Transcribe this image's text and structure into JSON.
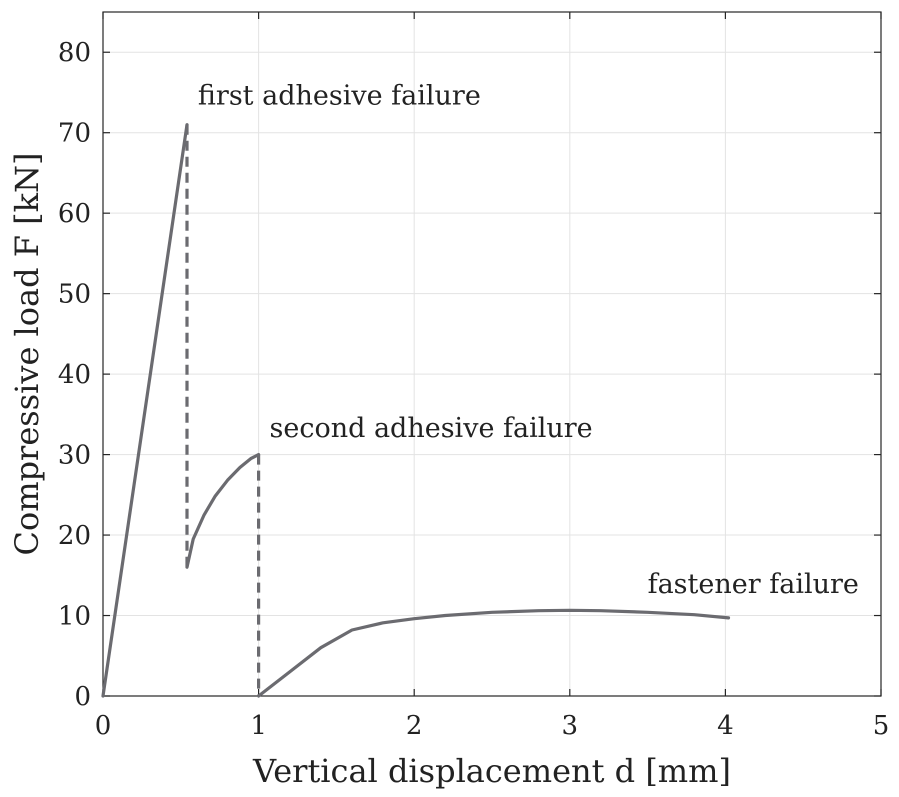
{
  "chart_data": {
    "type": "line",
    "xlabel": "Vertical displacement d [mm]",
    "ylabel": "Compressive load F [kN]",
    "xlim": [
      0,
      5
    ],
    "ylim": [
      0,
      85
    ],
    "xticks": [
      0,
      1,
      2,
      3,
      4,
      5
    ],
    "yticks": [
      0,
      10,
      20,
      30,
      40,
      50,
      60,
      70,
      80
    ],
    "grid": true,
    "color": "#6b6b70",
    "series": [
      {
        "name": "loading-to-first-failure",
        "style": "solid",
        "x": [
          0,
          0.54
        ],
        "y": [
          0,
          71
        ]
      },
      {
        "name": "drop-after-first-failure",
        "style": "dashed",
        "x": [
          0.54,
          0.54
        ],
        "y": [
          71,
          16
        ]
      },
      {
        "name": "reloading-to-second-failure",
        "style": "solid",
        "x": [
          0.54,
          0.58,
          0.65,
          0.72,
          0.8,
          0.88,
          0.95,
          1.0
        ],
        "y": [
          16,
          19.5,
          22.5,
          24.8,
          26.8,
          28.4,
          29.5,
          30
        ]
      },
      {
        "name": "drop-after-second-failure",
        "style": "dashed",
        "x": [
          1.0,
          1.0
        ],
        "y": [
          30,
          0
        ]
      },
      {
        "name": "fastener-phase",
        "style": "solid",
        "x": [
          1.0,
          1.2,
          1.4,
          1.6,
          1.8,
          2.0,
          2.2,
          2.5,
          2.8,
          3.0,
          3.2,
          3.5,
          3.8,
          4.02
        ],
        "y": [
          0,
          3,
          6,
          8.2,
          9.1,
          9.6,
          10.0,
          10.4,
          10.6,
          10.65,
          10.6,
          10.4,
          10.1,
          9.7
        ]
      }
    ],
    "annotations": [
      {
        "text": "first adhesive failure",
        "x": 0.61,
        "y": 73.5
      },
      {
        "text": "second adhesive failure",
        "x": 1.07,
        "y": 32.2
      },
      {
        "text": "fastener failure",
        "x": 3.5,
        "y": 12.8
      }
    ]
  }
}
